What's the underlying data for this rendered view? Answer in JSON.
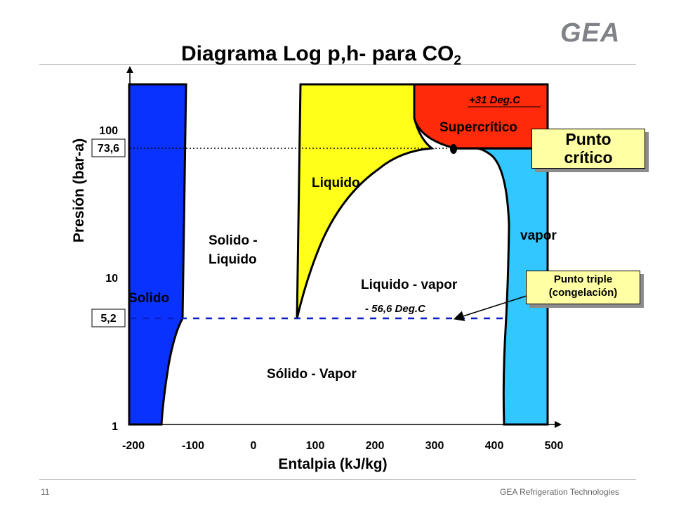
{
  "header": {
    "title_main": "Diagrama Log  p,h- para CO",
    "title_sub": "2",
    "logo_text": "GEA"
  },
  "axes": {
    "y_label": "Presión (bar-a)",
    "x_label": "Entalpia (kJ/kg)",
    "y_ticks": [
      "100",
      "10",
      "1"
    ],
    "y_marks": [
      "73,6",
      "5,2"
    ],
    "x_ticks": [
      "-200",
      "-100",
      "0",
      "100",
      "200",
      "300",
      "400",
      "500"
    ]
  },
  "regions": {
    "solid": "Solido",
    "solid_liquid_1": "Solido -",
    "solid_liquid_2": "Liquido",
    "liquid": "Liquido",
    "supercritical": "Supercrítico",
    "vapor": "vapor",
    "liquid_vapor": "Liquido - vapor",
    "solid_vapor": "Sólido - Vapor"
  },
  "annotations": {
    "temp_critical": "+31 Deg.C",
    "temp_triple": "- 56,6 Deg.C"
  },
  "callouts": {
    "critical_point_1": "Punto",
    "critical_point_2": "crítico",
    "triple_point_1": "Punto triple",
    "triple_point_2": "(congelación)"
  },
  "colors": {
    "solid": "#0a32ff",
    "liquid": "#ffff19",
    "supercritical": "#ff2a0a",
    "vapor": "#32c8ff",
    "callout_bg": "#ffffa3",
    "dashed_line": "#0a1ec8"
  },
  "footer": {
    "page_number": "11",
    "company": "GEA Refrigeration Technologies"
  }
}
